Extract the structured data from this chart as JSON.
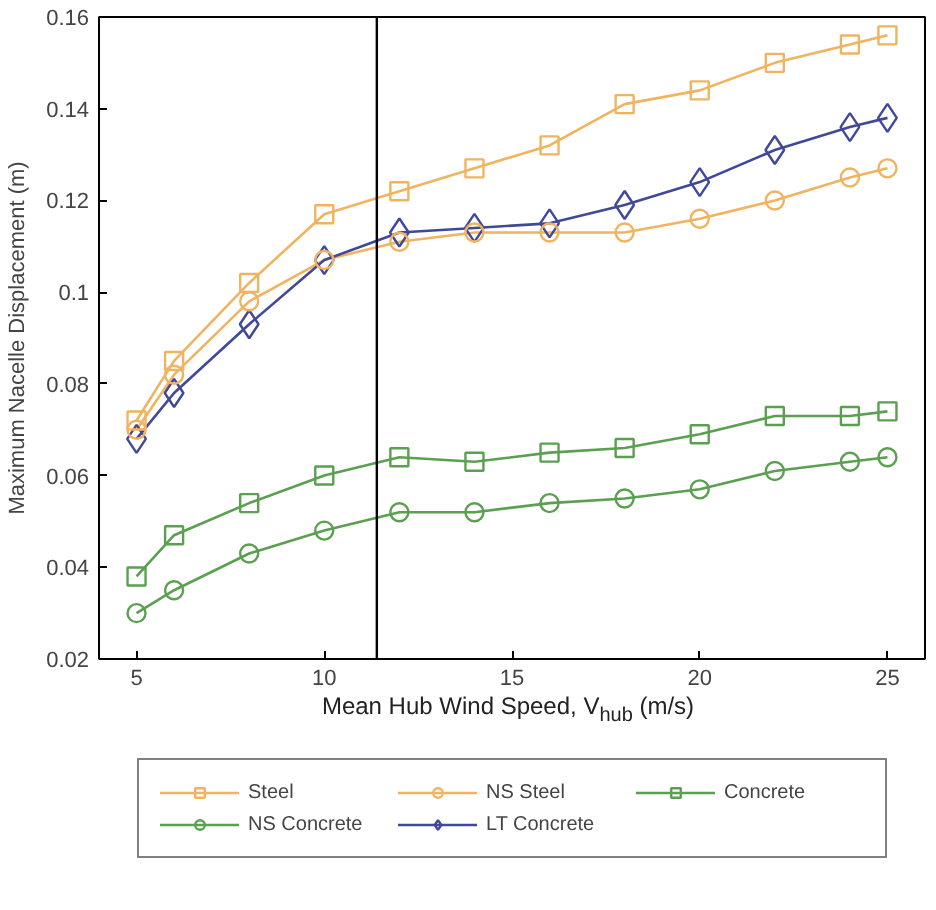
{
  "chart_data": {
    "type": "line",
    "xlabel": "Mean Hub Wind Speed, V$_{hub}$ (m/s)",
    "ylabel": "Maximum Nacelle Displacement (m)",
    "x": [
      5,
      6,
      8,
      10,
      12,
      14,
      16,
      18,
      20,
      22,
      24,
      25
    ],
    "series": [
      {
        "name": "Steel",
        "color": "#f0b460",
        "marker": "square",
        "values": [
          0.072,
          0.085,
          0.102,
          0.117,
          0.122,
          0.127,
          0.132,
          0.141,
          0.144,
          0.15,
          0.154,
          0.156
        ]
      },
      {
        "name": "NS Steel",
        "color": "#f0b460",
        "marker": "circle",
        "values": [
          0.07,
          0.082,
          0.098,
          0.107,
          0.111,
          0.113,
          0.113,
          0.113,
          0.116,
          0.12,
          0.125,
          0.127
        ]
      },
      {
        "name": "Concrete",
        "color": "#5aa050",
        "marker": "square",
        "values": [
          0.038,
          0.047,
          0.054,
          0.06,
          0.064,
          0.063,
          0.065,
          0.066,
          0.069,
          0.073,
          0.073,
          0.074
        ]
      },
      {
        "name": "NS Concrete",
        "color": "#5aa050",
        "marker": "circle",
        "values": [
          0.03,
          0.035,
          0.043,
          0.048,
          0.052,
          0.052,
          0.054,
          0.055,
          0.057,
          0.061,
          0.063,
          0.064
        ]
      },
      {
        "name": "LT Concrete",
        "color": "#404898",
        "marker": "diamond",
        "values": [
          0.068,
          0.078,
          0.093,
          0.107,
          0.113,
          0.114,
          0.115,
          0.119,
          0.124,
          0.131,
          0.136,
          0.138
        ]
      }
    ],
    "xlim": [
      4,
      26
    ],
    "xticks": [
      5,
      10,
      15,
      20,
      25
    ],
    "ylim": [
      0.02,
      0.16
    ],
    "yticks": [
      0.02,
      0.04,
      0.06,
      0.08,
      0.1,
      0.12,
      0.14,
      0.16
    ],
    "ref_lines": [
      {
        "axis": "x",
        "value": 11.4,
        "color": "#000000"
      }
    ],
    "grid": false,
    "legend": "bottom"
  }
}
